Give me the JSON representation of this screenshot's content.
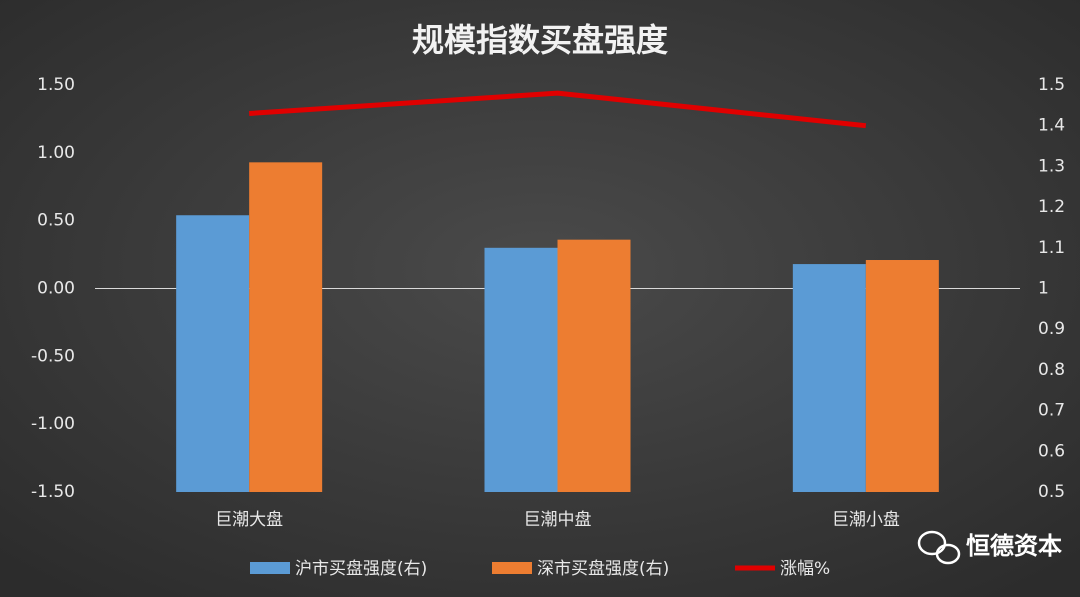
{
  "chart_data": {
    "type": "bar",
    "title": "规模指数买盘强度",
    "categories": [
      "巨潮大盘",
      "巨潮中盘",
      "巨潮小盘"
    ],
    "series": [
      {
        "name": "沪市买盘强度(右)",
        "color": "#5b9bd5",
        "type": "bar",
        "axis": "y2",
        "values": [
          1.18,
          1.1,
          1.06
        ]
      },
      {
        "name": "深市买盘强度(右)",
        "color": "#ed7d31",
        "type": "bar",
        "axis": "y2",
        "values": [
          1.31,
          1.12,
          1.07
        ]
      },
      {
        "name": "涨幅%",
        "color": "#e00000",
        "type": "line",
        "values": [
          1.29,
          1.44,
          1.2
        ]
      }
    ],
    "ylim": [
      -1.5,
      1.5
    ],
    "yticks": [
      {
        "value": -1.5,
        "label": "-1.50"
      },
      {
        "value": -1,
        "label": "-1.00"
      },
      {
        "value": -0.5,
        "label": "-0.50"
      },
      {
        "value": 0,
        "label": "0.00"
      },
      {
        "value": 0.5,
        "label": "0.50"
      },
      {
        "value": 1,
        "label": "1.00"
      },
      {
        "value": 1.5,
        "label": "1.50"
      }
    ],
    "y2lim": [
      0.5,
      1.5
    ],
    "y2ticks": [
      0.5,
      0.6,
      0.7,
      0.8,
      0.9,
      1,
      1.1,
      1.2,
      1.3,
      1.4,
      1.5
    ],
    "watermark": "恒德资本"
  }
}
